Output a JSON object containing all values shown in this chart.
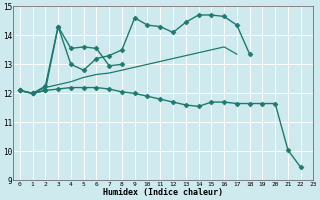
{
  "xlabel": "Humidex (Indice chaleur)",
  "xlim": [
    -0.5,
    23
  ],
  "ylim": [
    9,
    15
  ],
  "yticks": [
    9,
    10,
    11,
    12,
    13,
    14,
    15
  ],
  "xticks": [
    0,
    1,
    2,
    3,
    4,
    5,
    6,
    7,
    8,
    9,
    10,
    11,
    12,
    13,
    14,
    15,
    16,
    17,
    18,
    19,
    20,
    21,
    22,
    23
  ],
  "bg_color": "#ceeaee",
  "grid_color": "#ffffff",
  "line_color": "#1e7a6e",
  "series": [
    {
      "x": [
        0,
        1,
        2,
        3,
        4,
        5,
        6,
        7,
        8,
        9,
        10,
        11,
        12,
        13,
        14,
        15,
        16,
        17,
        18
      ],
      "y": [
        12.1,
        12.0,
        12.1,
        14.3,
        13.0,
        12.8,
        13.2,
        13.3,
        13.5,
        14.6,
        14.35,
        14.3,
        14.1,
        14.45,
        14.7,
        14.7,
        14.65,
        14.35,
        13.35
      ],
      "marker": "D",
      "markersize": 2.5,
      "linewidth": 1.0
    },
    {
      "x": [
        0,
        1,
        2,
        3,
        4,
        5,
        6,
        7,
        8
      ],
      "y": [
        12.1,
        12.0,
        12.25,
        14.3,
        13.55,
        13.6,
        13.55,
        12.95,
        13.0
      ],
      "marker": "D",
      "markersize": 2.5,
      "linewidth": 1.0
    },
    {
      "x": [
        0,
        1,
        2,
        3,
        4,
        5,
        6,
        7,
        8,
        9,
        10,
        11,
        12,
        13,
        14,
        15,
        16,
        17
      ],
      "y": [
        12.1,
        12.0,
        12.2,
        12.3,
        12.4,
        12.55,
        12.65,
        12.7,
        12.8,
        12.9,
        13.0,
        13.1,
        13.2,
        13.3,
        13.4,
        13.5,
        13.6,
        13.35
      ],
      "marker": null,
      "markersize": 0,
      "linewidth": 0.9
    },
    {
      "x": [
        0,
        1,
        2,
        3,
        4,
        5,
        6,
        7,
        8,
        9,
        10,
        11,
        12,
        13,
        14,
        15,
        16,
        17,
        18,
        19,
        20,
        21,
        22
      ],
      "y": [
        12.1,
        12.0,
        12.1,
        12.15,
        12.2,
        12.2,
        12.2,
        12.15,
        12.05,
        12.0,
        11.9,
        11.8,
        11.7,
        11.6,
        11.55,
        11.7,
        11.7,
        11.65,
        11.65,
        11.65,
        11.65,
        10.05,
        9.45
      ],
      "marker": "D",
      "markersize": 2.5,
      "linewidth": 1.0
    }
  ]
}
